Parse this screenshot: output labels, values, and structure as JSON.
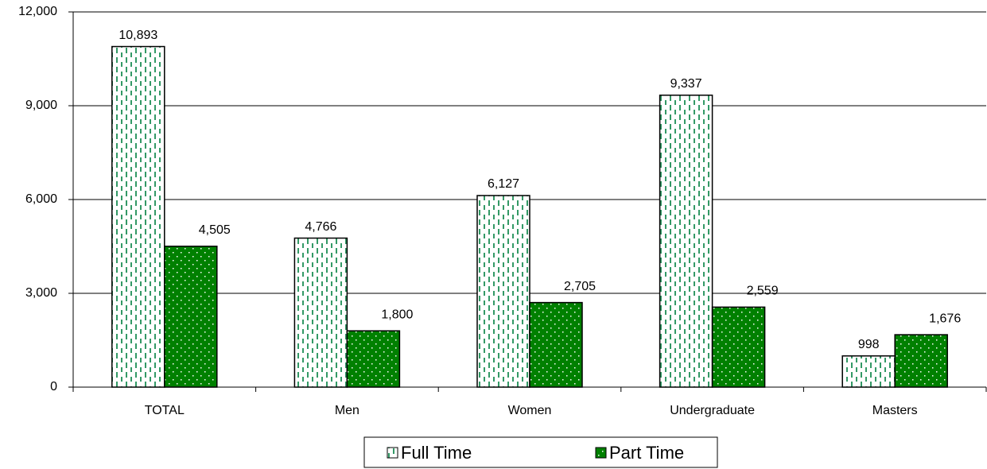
{
  "chart_data": {
    "type": "bar",
    "categories": [
      "TOTAL",
      "Men",
      "Women",
      "Undergraduate",
      "Masters"
    ],
    "series": [
      {
        "name": "Full Time",
        "color": "#339966",
        "values": [
          10893,
          4766,
          6127,
          9337,
          998
        ],
        "value_labels": [
          "10,893",
          "4,766",
          "6,127",
          "9,337",
          "998"
        ]
      },
      {
        "name": "Part Time",
        "color": "#008000",
        "values": [
          4505,
          1800,
          2705,
          2559,
          1676
        ],
        "value_labels": [
          "4,505",
          "1,800",
          "2,705",
          "2,559",
          "1,676"
        ]
      }
    ],
    "ylim": [
      0,
      12000
    ],
    "yticks": [
      0,
      {
        "value": 3000,
        "label": "3,000"
      },
      {
        "value": 6000,
        "label": "6,000"
      },
      {
        "value": 9000,
        "label": "9,000"
      },
      {
        "value": 12000,
        "label": "12,000"
      }
    ],
    "grid": true,
    "legend": "bottom"
  }
}
